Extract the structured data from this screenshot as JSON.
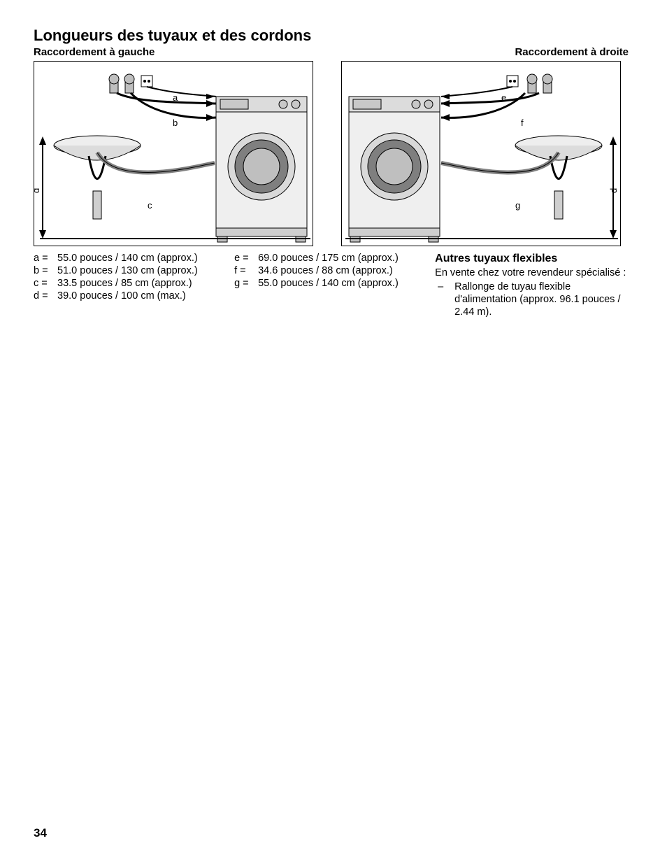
{
  "title": "Longueurs des tuyaux et des cordons",
  "subtitle_left": "Raccordement à gauche",
  "subtitle_right": "Raccordement à droite",
  "diagram_left": {
    "labels": {
      "a": "a",
      "b": "b",
      "c": "c",
      "d": "d"
    },
    "colors": {
      "stroke": "#000000",
      "light": "#bfbfbf",
      "mid": "#9a9a9a",
      "dark": "#4d4d4d"
    }
  },
  "diagram_right": {
    "labels": {
      "e": "e",
      "f": "f",
      "g": "g",
      "d": "d"
    },
    "colors": {
      "stroke": "#000000",
      "light": "#bfbfbf",
      "mid": "#9a9a9a",
      "dark": "#4d4d4d"
    }
  },
  "measurements_col1": [
    {
      "key": "a =",
      "val": "55.0 pouces / 140 cm (approx.)"
    },
    {
      "key": "b =",
      "val": "51.0 pouces / 130 cm (approx.)"
    },
    {
      "key": "c =",
      "val": "33.5 pouces / 85 cm (approx.)"
    },
    {
      "key": "d =",
      "val": "39.0 pouces / 100 cm (max.)"
    }
  ],
  "measurements_col2": [
    {
      "key": "e =",
      "val": "69.0 pouces / 175 cm (approx.)"
    },
    {
      "key": "f =",
      "val": "34.6 pouces / 88 cm (approx.)"
    },
    {
      "key": "g =",
      "val": "55.0 pouces / 140 cm (approx.)"
    }
  ],
  "col3": {
    "heading": "Autres tuyaux flexibles",
    "intro": "En vente chez votre revendeur spécialisé :",
    "items": [
      "Rallonge de tuyau flexible d'alimentation (approx. 96.1 pouces / 2.44 m)."
    ]
  },
  "page_number": "34"
}
